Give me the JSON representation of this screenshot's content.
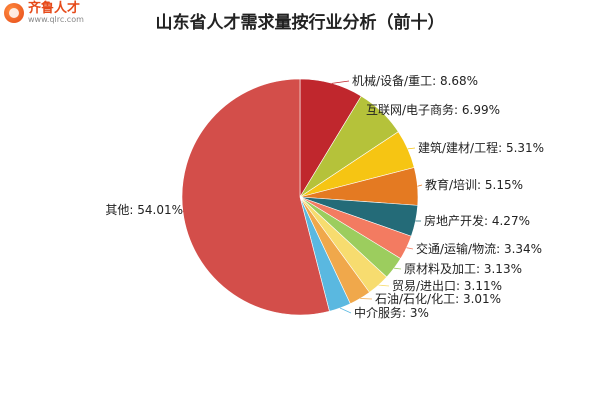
{
  "logo": {
    "name": "齐鲁人才",
    "url": "www.qlrc.com"
  },
  "chart_data": {
    "type": "pie",
    "title": "山东省人才需求量按行业分析（前十）",
    "slices": [
      {
        "label": "机械/设备/重工",
        "value": 8.68,
        "display": "8.68%",
        "color": "#c0272d"
      },
      {
        "label": "互联网/电子商务",
        "value": 6.99,
        "display": "6.99%",
        "color": "#b5c23a"
      },
      {
        "label": "建筑/建材/工程",
        "value": 5.31,
        "display": "5.31%",
        "color": "#f6c513"
      },
      {
        "label": "教育/培训",
        "value": 5.15,
        "display": "5.15%",
        "color": "#e47a22"
      },
      {
        "label": "房地产开发",
        "value": 4.27,
        "display": "4.27%",
        "color": "#246b78"
      },
      {
        "label": "交通/运输/物流",
        "value": 3.34,
        "display": "3.34%",
        "color": "#f37b61"
      },
      {
        "label": "原材料及加工",
        "value": 3.13,
        "display": "3.13%",
        "color": "#9ccd5e"
      },
      {
        "label": "贸易/进出口",
        "value": 3.11,
        "display": "3.11%",
        "color": "#f7dc6f"
      },
      {
        "label": "石油/石化/化工",
        "value": 3.01,
        "display": "3.01%",
        "color": "#f0a84b"
      },
      {
        "label": "中介服务",
        "value": 3,
        "display": "3%",
        "color": "#5ab8e0"
      },
      {
        "label": "其他",
        "value": 54.01,
        "display": "54.01%",
        "color": "#d34e4a"
      }
    ],
    "legend": "none"
  }
}
